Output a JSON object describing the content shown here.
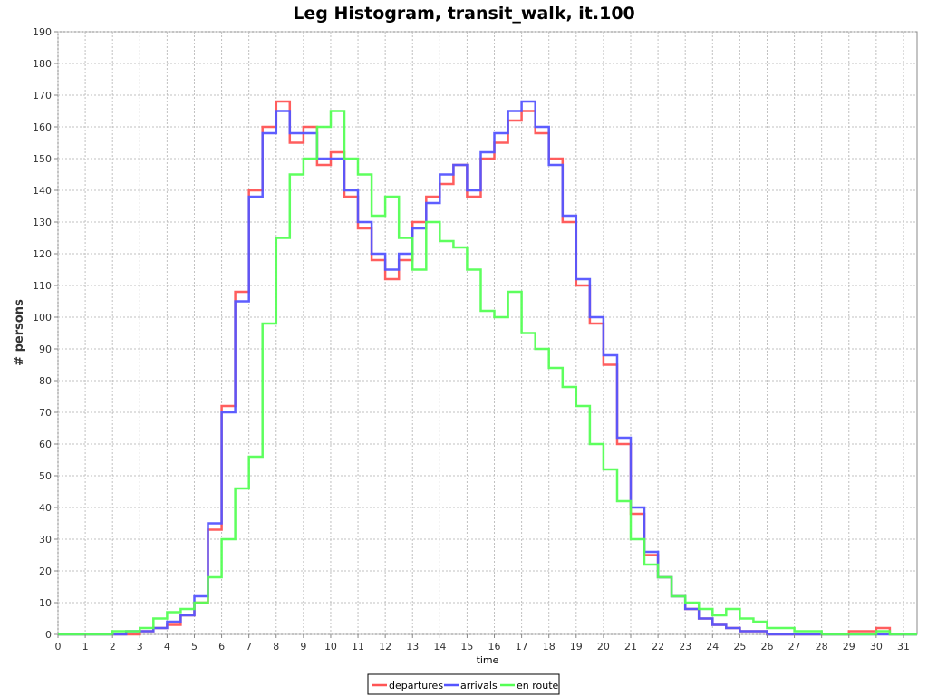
{
  "chart_data": {
    "type": "line",
    "title": "Leg Histogram, transit_walk, it.100",
    "xlabel": "time",
    "ylabel": "# persons",
    "xlim": [
      0,
      31.5
    ],
    "ylim": [
      0,
      190
    ],
    "x_ticks": [
      0,
      1,
      2,
      3,
      4,
      5,
      6,
      7,
      8,
      9,
      10,
      11,
      12,
      13,
      14,
      15,
      16,
      17,
      18,
      19,
      20,
      21,
      22,
      23,
      24,
      25,
      26,
      27,
      28,
      29,
      30,
      31
    ],
    "y_ticks": [
      0,
      10,
      20,
      30,
      40,
      50,
      60,
      70,
      80,
      90,
      100,
      110,
      120,
      130,
      140,
      150,
      160,
      170,
      180,
      190
    ],
    "grid": true,
    "legend_position": "bottom",
    "x": [
      0,
      0.5,
      1,
      1.5,
      2,
      2.5,
      3,
      3.5,
      4,
      4.5,
      5,
      5.5,
      6,
      6.5,
      7,
      7.5,
      8,
      8.5,
      9,
      9.5,
      10,
      10.5,
      11,
      11.5,
      12,
      12.5,
      13,
      13.5,
      14,
      14.5,
      15,
      15.5,
      16,
      16.5,
      17,
      17.5,
      18,
      18.5,
      19,
      19.5,
      20,
      20.5,
      21,
      21.5,
      22,
      22.5,
      23,
      23.5,
      24,
      24.5,
      25,
      25.5,
      26,
      26.5,
      27,
      27.5,
      28,
      28.5,
      29,
      29.5,
      30,
      30.5,
      31
    ],
    "series": [
      {
        "name": "departures",
        "color": "#ff5555",
        "values": [
          0,
          0,
          0,
          0,
          0,
          0,
          1,
          2,
          3,
          6,
          10,
          33,
          72,
          108,
          140,
          160,
          168,
          155,
          160,
          148,
          152,
          138,
          128,
          118,
          112,
          118,
          130,
          138,
          142,
          148,
          138,
          150,
          155,
          162,
          165,
          158,
          150,
          130,
          110,
          98,
          85,
          60,
          38,
          25,
          18,
          12,
          8,
          5,
          3,
          2,
          1,
          1,
          0,
          0,
          0,
          0,
          0,
          0,
          1,
          1,
          2,
          0,
          0
        ]
      },
      {
        "name": "arrivals",
        "color": "#5555ff",
        "values": [
          0,
          0,
          0,
          0,
          0,
          1,
          1,
          2,
          4,
          6,
          12,
          35,
          70,
          105,
          138,
          158,
          165,
          158,
          158,
          150,
          150,
          140,
          130,
          120,
          115,
          120,
          128,
          136,
          145,
          148,
          140,
          152,
          158,
          165,
          168,
          160,
          148,
          132,
          112,
          100,
          88,
          62,
          40,
          26,
          18,
          12,
          8,
          5,
          3,
          2,
          1,
          1,
          0,
          0,
          0,
          0,
          0,
          0,
          0,
          0,
          0,
          0,
          0
        ]
      },
      {
        "name": "en route",
        "color": "#55ff55",
        "values": [
          0,
          0,
          0,
          0,
          1,
          1,
          2,
          5,
          7,
          8,
          10,
          18,
          30,
          46,
          56,
          98,
          125,
          145,
          150,
          160,
          165,
          150,
          145,
          132,
          138,
          125,
          115,
          130,
          124,
          122,
          115,
          102,
          100,
          108,
          95,
          90,
          84,
          78,
          72,
          60,
          52,
          42,
          30,
          22,
          18,
          12,
          10,
          8,
          6,
          8,
          5,
          4,
          2,
          2,
          1,
          1,
          0,
          0,
          0,
          0,
          1,
          0,
          0
        ]
      }
    ]
  }
}
